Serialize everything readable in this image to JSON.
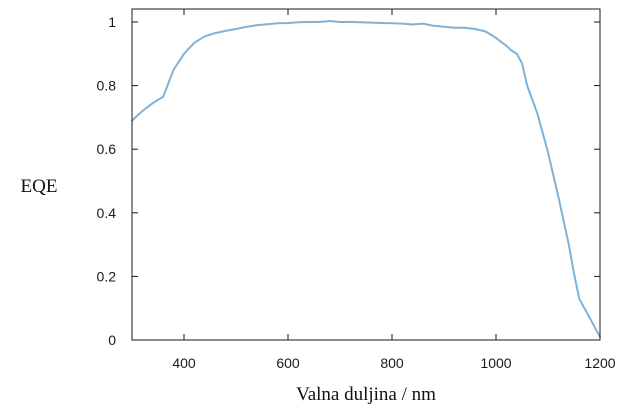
{
  "chart_data": {
    "type": "line",
    "title": "",
    "xlabel": "Valna duljina / nm",
    "ylabel": "EQE",
    "xlim": [
      300,
      1200
    ],
    "ylim": [
      0,
      1.05
    ],
    "x_ticks": [
      400,
      600,
      800,
      1000,
      1200
    ],
    "x_tick_labels": [
      "400",
      "600",
      "800",
      "1000",
      "1200"
    ],
    "y_ticks": [
      0,
      0.2,
      0.4,
      0.6,
      0.8,
      1
    ],
    "y_tick_labels": [
      "0",
      "0.2",
      "0.4",
      "0.6",
      "0.8",
      "1"
    ],
    "grid": false,
    "legend": "none",
    "series": [
      {
        "color": "#7fb2d8",
        "x": [
          300,
          320,
          340,
          360,
          380,
          400,
          420,
          440,
          460,
          480,
          500,
          520,
          540,
          560,
          580,
          600,
          620,
          640,
          660,
          680,
          700,
          720,
          740,
          760,
          780,
          800,
          820,
          840,
          860,
          880,
          900,
          920,
          940,
          960,
          980,
          1000,
          1020,
          1030,
          1040,
          1050,
          1060,
          1080,
          1100,
          1120,
          1140,
          1150,
          1160,
          1180,
          1200
        ],
        "y": [
          0.69,
          0.72,
          0.745,
          0.765,
          0.85,
          0.9,
          0.935,
          0.955,
          0.965,
          0.972,
          0.978,
          0.985,
          0.99,
          0.993,
          0.996,
          0.997,
          0.999,
          1.0,
          1.0,
          1.003,
          1.0,
          1.0,
          0.999,
          0.998,
          0.997,
          0.996,
          0.995,
          0.992,
          0.995,
          0.988,
          0.985,
          0.982,
          0.982,
          0.978,
          0.97,
          0.95,
          0.925,
          0.91,
          0.9,
          0.87,
          0.8,
          0.71,
          0.59,
          0.45,
          0.3,
          0.21,
          0.13,
          0.07,
          0.01
        ]
      }
    ]
  }
}
